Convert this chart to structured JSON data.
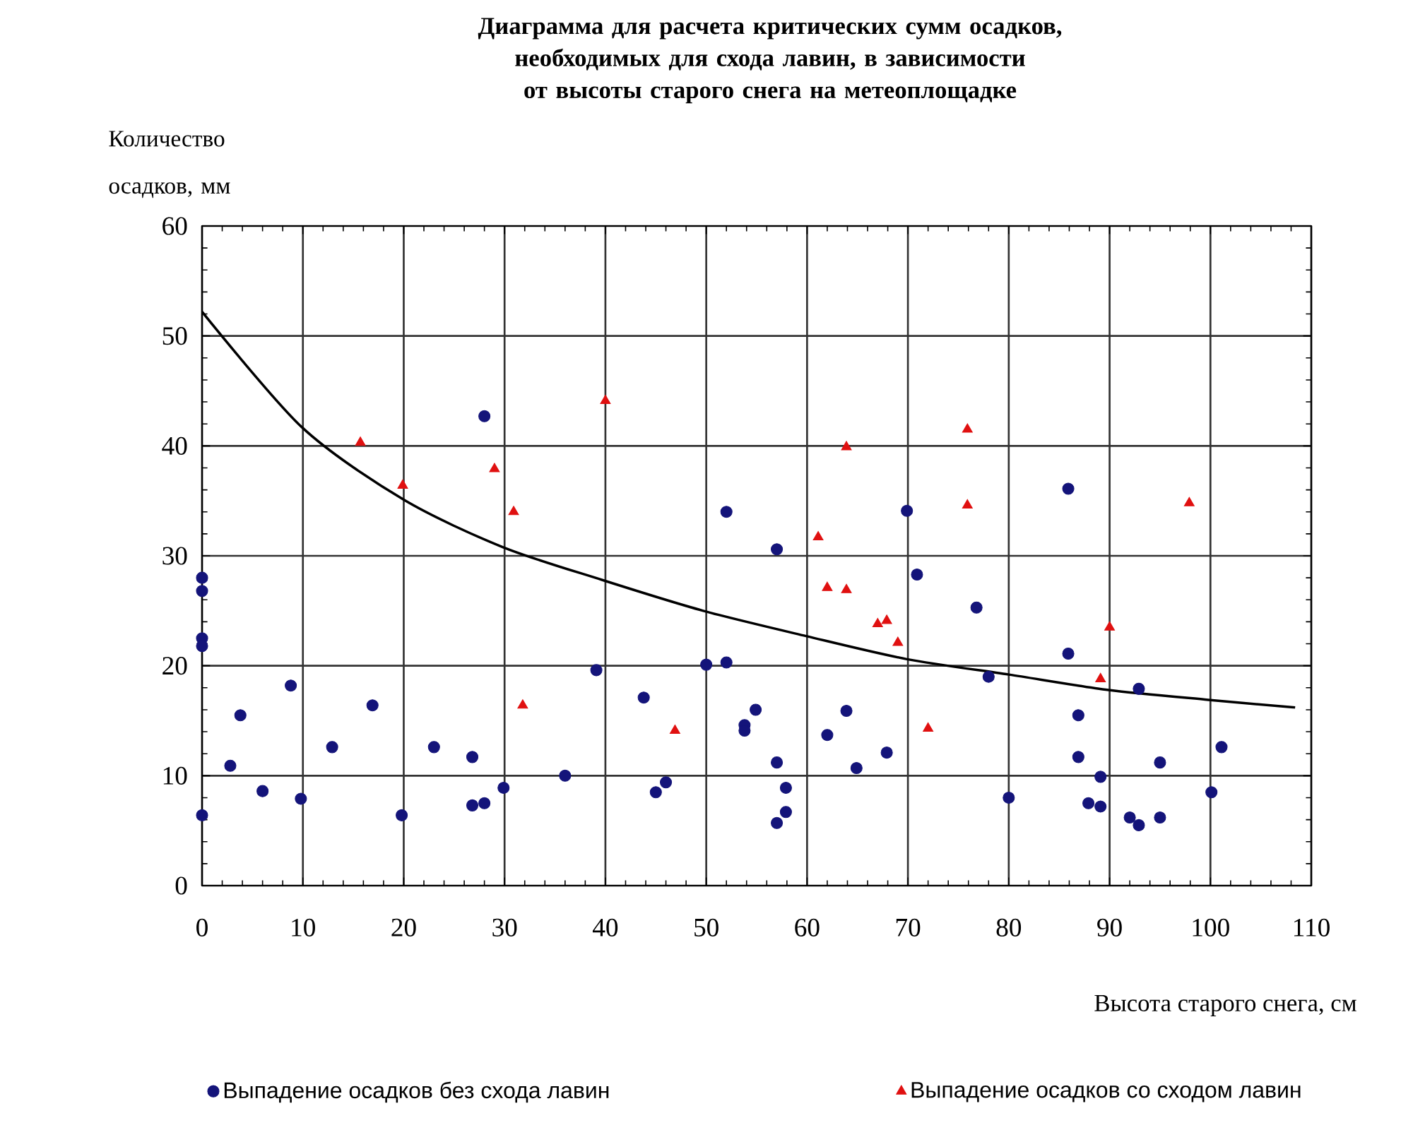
{
  "chart_data": {
    "type": "scatter",
    "title": "Диаграмма для расчета критических сумм осадков, необходимых для схода лавин, в зависимости от высоты старого снега на метеоплощадке",
    "xlabel": "Высота старого снега, см",
    "ylabel": "Количество осадков, мм",
    "xlim": [
      0,
      110
    ],
    "ylim": [
      0,
      60
    ],
    "xticks": [
      0,
      10,
      20,
      30,
      40,
      50,
      60,
      70,
      80,
      90,
      100,
      110
    ],
    "yticks": [
      0,
      10,
      20,
      30,
      40,
      50,
      60
    ],
    "grid": true,
    "legend": "bottom",
    "series": [
      {
        "name": "Выпадение осадков без схода лавин",
        "marker": "circle",
        "color": "#14147a",
        "x": [
          28.0,
          52.0,
          57.0,
          69.9,
          85.9,
          0,
          0,
          0,
          0,
          0,
          2.8,
          3.8,
          6.0,
          8.8,
          9.8,
          12.9,
          16.9,
          19.8,
          23.0,
          26.8,
          26.8,
          28.0,
          29.9,
          36.0,
          39.1,
          43.8,
          45.0,
          46.0,
          50.0,
          52.0,
          53.8,
          53.8,
          54.9,
          57.0,
          57.9,
          57.9,
          57.0,
          62.0,
          63.9,
          64.9,
          67.9,
          70.9,
          76.8,
          78.0,
          80.0,
          85.9,
          86.9,
          86.9,
          89.1,
          87.9,
          89.1,
          92.9,
          92.0,
          92.9,
          95.0,
          95.0,
          101.1,
          100.1
        ],
        "values": [
          42.7,
          34.0,
          30.6,
          34.1,
          36.1,
          28.0,
          26.8,
          22.5,
          21.8,
          6.4,
          10.9,
          15.5,
          8.6,
          18.2,
          7.9,
          12.6,
          16.4,
          6.4,
          12.6,
          11.7,
          7.3,
          7.5,
          8.9,
          10.0,
          19.6,
          17.1,
          8.5,
          9.4,
          20.1,
          20.3,
          14.6,
          14.1,
          16.0,
          11.2,
          8.9,
          6.7,
          5.7,
          13.7,
          15.9,
          10.7,
          12.1,
          28.3,
          25.3,
          19.0,
          8.0,
          21.1,
          15.5,
          11.7,
          9.9,
          7.5,
          7.2,
          17.9,
          6.2,
          5.5,
          11.2,
          6.2,
          12.6,
          8.5
        ]
      },
      {
        "name": "Выпадение осадков со сходом лавин",
        "marker": "triangle",
        "color": "#e01010",
        "x": [
          15.7,
          19.9,
          29.0,
          30.9,
          40.0,
          31.8,
          46.9,
          61.1,
          62.0,
          63.9,
          63.9,
          67.0,
          67.9,
          69.0,
          72.0,
          75.9,
          75.9,
          89.1,
          90.0,
          97.9
        ],
        "values": [
          40.3,
          36.4,
          37.9,
          34.0,
          44.1,
          16.4,
          14.1,
          31.7,
          27.1,
          26.9,
          39.9,
          23.8,
          24.1,
          22.1,
          14.3,
          41.5,
          34.6,
          18.8,
          23.5,
          34.8
        ]
      },
      {
        "type": "line",
        "marker": "none",
        "line_style": "solid",
        "color": "#000000",
        "x": [
          0,
          9.9,
          20,
          29.8,
          39.7,
          49.7,
          59.9,
          69.9,
          80,
          89.9,
          99.8,
          108.4
        ],
        "values": [
          52.2,
          41.7,
          35.1,
          30.8,
          27.8,
          25.0,
          22.7,
          20.6,
          19.2,
          17.8,
          16.9,
          16.2
        ]
      }
    ]
  }
}
